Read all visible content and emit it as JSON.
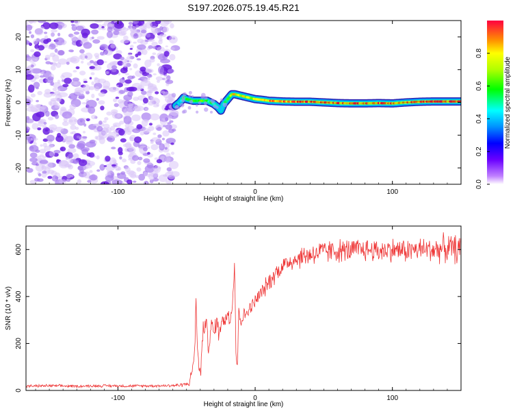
{
  "title": "S197.2026.075.19.45.R21",
  "chart_data": [
    {
      "type": "heatmap",
      "title": "S197.2026.075.19.45.R21",
      "xlabel": "Height of straight line (km)",
      "ylabel": "Frequency (Hz)",
      "xlim": [
        -167,
        150
      ],
      "ylim": [
        -25,
        25
      ],
      "xticks": [
        -100,
        0,
        100
      ],
      "yticks": [
        -20,
        -10,
        0,
        10,
        20
      ],
      "xtick_labels": [
        "-100",
        "0",
        "100"
      ],
      "ytick_labels": [
        "-20",
        "-10",
        "0",
        "10",
        "20"
      ],
      "noise_region_x": [
        -167,
        -58
      ],
      "signal_track": {
        "x": [
          -58,
          -55,
          -52,
          -50,
          -45,
          -40,
          -35,
          -30,
          -27,
          -25,
          -23,
          -20,
          -17,
          -15,
          -10,
          -5,
          0,
          5,
          10,
          20,
          30,
          40,
          50,
          60,
          70,
          80,
          90,
          100,
          110,
          120,
          130,
          140,
          150
        ],
        "freq": [
          -1,
          0,
          1.5,
          1,
          0.5,
          0.5,
          0.5,
          -0.5,
          -1.5,
          -2.5,
          -0.5,
          1,
          2.5,
          2.5,
          2,
          1.5,
          1,
          0.8,
          0.5,
          0.3,
          0.2,
          0.2,
          0,
          -0.2,
          -0.3,
          -0.3,
          -0.2,
          -0.3,
          0,
          0.2,
          0.3,
          0.3,
          0.3
        ],
        "amplitude": [
          0.3,
          0.45,
          0.5,
          0.55,
          0.6,
          0.6,
          0.55,
          0.5,
          0.4,
          0.4,
          0.45,
          0.55,
          0.75,
          0.8,
          0.75,
          0.7,
          0.75,
          0.8,
          0.85,
          0.9,
          0.95,
          0.9,
          0.9,
          0.9,
          0.9,
          0.85,
          0.9,
          0.9,
          0.85,
          0.9,
          0.95,
          0.9,
          0.9
        ]
      },
      "colorbar": {
        "label": "Normalized spectral amplitude",
        "range": [
          0,
          1
        ],
        "ticks": [
          0.0,
          0.2,
          0.4,
          0.6,
          0.8
        ],
        "tick_labels": [
          "0.0",
          "0.2",
          "0.4",
          "0.6",
          "0.8"
        ]
      }
    },
    {
      "type": "line",
      "title": "",
      "xlabel": "Height of straight line (km)",
      "ylabel": "SNR (10 * v/v)",
      "xlim": [
        -167,
        150
      ],
      "ylim": [
        0,
        700
      ],
      "xticks": [
        -100,
        0,
        100
      ],
      "yticks": [
        0,
        200,
        400,
        600
      ],
      "xtick_labels": [
        "-100",
        "0",
        "100"
      ],
      "ytick_labels": [
        "0",
        "200",
        "400",
        "600"
      ],
      "series": [
        {
          "name": "SNR",
          "color": "#ee3333",
          "x": [
            -167,
            -150,
            -130,
            -110,
            -90,
            -70,
            -55,
            -48,
            -46,
            -44,
            -43,
            -42,
            -40,
            -38,
            -36,
            -34,
            -32,
            -30,
            -28,
            -26,
            -24,
            -22,
            -20,
            -18,
            -16,
            -15,
            -14,
            -13,
            -12,
            -10,
            -8,
            -6,
            -4,
            -2,
            0,
            5,
            10,
            15,
            20,
            25,
            30,
            40,
            50,
            60,
            70,
            80,
            90,
            100,
            110,
            120,
            130,
            140,
            150
          ],
          "y": [
            18,
            20,
            18,
            20,
            19,
            20,
            22,
            30,
            80,
            180,
            390,
            160,
            60,
            250,
            300,
            180,
            280,
            240,
            300,
            230,
            330,
            280,
            340,
            300,
            420,
            560,
            150,
            100,
            330,
            300,
            320,
            330,
            350,
            360,
            380,
            420,
            460,
            500,
            530,
            550,
            560,
            580,
            590,
            595,
            595,
            600,
            595,
            600,
            595,
            600,
            600,
            605,
            600
          ],
          "noise_amplitude": [
            6,
            6,
            6,
            6,
            6,
            6,
            8,
            10,
            30,
            40,
            40,
            40,
            40,
            40,
            40,
            40,
            40,
            40,
            40,
            40,
            40,
            40,
            40,
            40,
            40,
            40,
            40,
            40,
            40,
            30,
            30,
            30,
            30,
            30,
            35,
            35,
            40,
            40,
            40,
            45,
            45,
            50,
            50,
            50,
            50,
            50,
            50,
            50,
            50,
            50,
            55,
            60,
            60
          ]
        }
      ]
    }
  ],
  "colors": {
    "line": "#ee3333",
    "noise": "#7b2fe0",
    "track_edge": "#2a1fb0"
  }
}
